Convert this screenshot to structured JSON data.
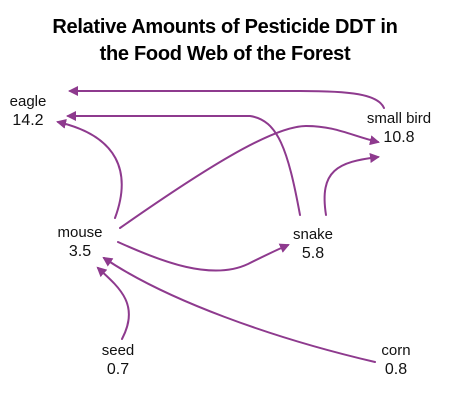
{
  "title_line1": "Relative Amounts of Pesticide DDT in",
  "title_line2": "the Food Web of the Forest",
  "arrow_color": "#8E3A8E",
  "nodes": {
    "eagle": {
      "name": "eagle",
      "value": "14.2"
    },
    "smallbird": {
      "name": "small bird",
      "value": "10.8"
    },
    "mouse": {
      "name": "mouse",
      "value": "3.5"
    },
    "snake": {
      "name": "snake",
      "value": "5.8"
    },
    "seed": {
      "name": "seed",
      "value": "0.7"
    },
    "corn": {
      "name": "corn",
      "value": "0.8"
    }
  },
  "links": [
    {
      "from": "small bird",
      "to": "eagle"
    },
    {
      "from": "snake",
      "to": "eagle"
    },
    {
      "from": "mouse",
      "to": "eagle"
    },
    {
      "from": "mouse",
      "to": "small bird"
    },
    {
      "from": "snake",
      "to": "small bird"
    },
    {
      "from": "mouse",
      "to": "snake"
    },
    {
      "from": "seed",
      "to": "mouse"
    },
    {
      "from": "corn",
      "to": "mouse"
    }
  ]
}
